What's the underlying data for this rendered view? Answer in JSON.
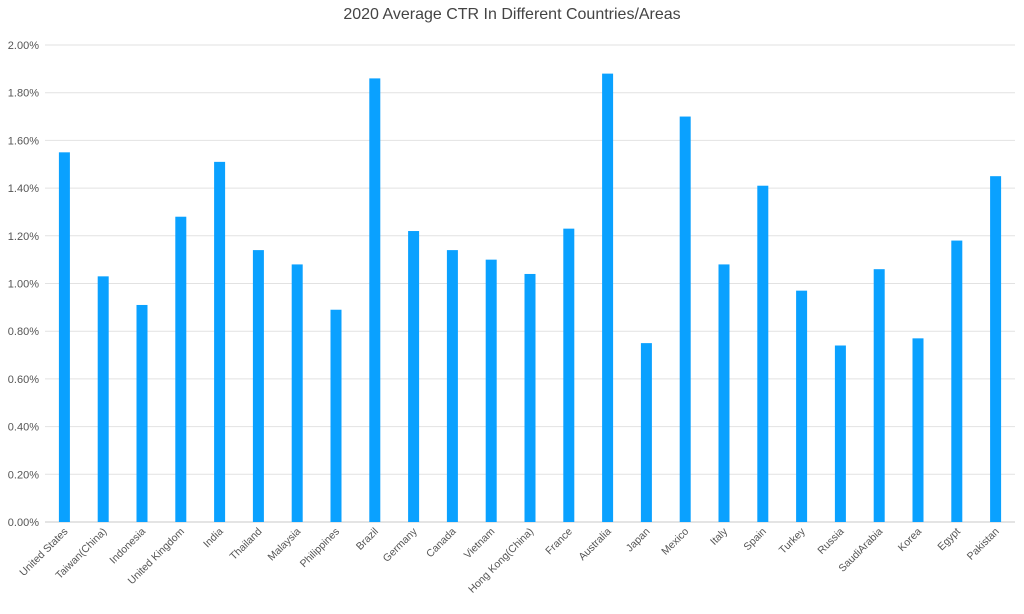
{
  "chart_data": {
    "type": "bar",
    "title": "2020 Average CTR In Different Countries/Areas",
    "xlabel": "",
    "ylabel": "",
    "ylim": [
      0,
      0.02
    ],
    "yticks": [
      "0.00%",
      "0.20%",
      "0.40%",
      "0.60%",
      "0.80%",
      "1.00%",
      "1.20%",
      "1.40%",
      "1.60%",
      "1.80%",
      "2.00%"
    ],
    "grid": true,
    "bar_color": "#0aa1ff",
    "categories": [
      "United States",
      "Taiwan(China)",
      "Indonesia",
      "United Kingdom",
      "India",
      "Thailand",
      "Malaysia",
      "Philippines",
      "Brazil",
      "Germany",
      "Canada",
      "Vietnam",
      "Hong Kong(China)",
      "France",
      "Australia",
      "Japan",
      "Mexico",
      "Italy",
      "Spain",
      "Turkey",
      "Russia",
      "SaudiArabia",
      "Korea",
      "Egypt",
      "Pakistan"
    ],
    "values": [
      0.0155,
      0.0103,
      0.0091,
      0.0128,
      0.0151,
      0.0114,
      0.0108,
      0.0089,
      0.0186,
      0.0122,
      0.0114,
      0.011,
      0.0104,
      0.0123,
      0.0188,
      0.0075,
      0.017,
      0.0108,
      0.0141,
      0.0097,
      0.0074,
      0.0106,
      0.0077,
      0.0118,
      0.0145
    ]
  }
}
